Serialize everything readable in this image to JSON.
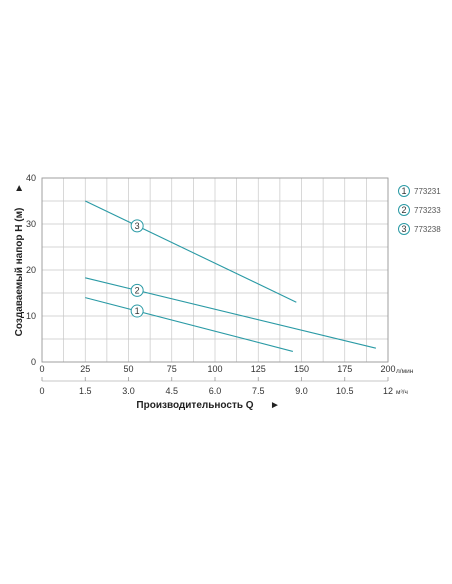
{
  "chart_data": {
    "type": "line",
    "x_primary": {
      "unit": "л/мин",
      "min": 0,
      "max": 200,
      "ticks": [
        0,
        25,
        50,
        75,
        100,
        125,
        150,
        175,
        200
      ]
    },
    "x_secondary": {
      "unit": "м³/ч",
      "ticks": [
        "0",
        "1.5",
        "3.0",
        "4.5",
        "6.0",
        "7.5",
        "9.0",
        "10.5",
        "12"
      ]
    },
    "y": {
      "min": 0,
      "max": 40,
      "ticks": [
        0,
        10,
        20,
        30,
        40
      ]
    },
    "xlabel": "Производительность Q",
    "ylabel": "Создаваемый напор H (м)",
    "grid": true,
    "line_color": "#2a9aa5",
    "legend_placement": "right",
    "series": [
      {
        "marker": "1",
        "name": "773231",
        "x": [
          25,
          145
        ],
        "y": [
          14,
          2.3
        ],
        "marker_x": 55
      },
      {
        "marker": "2",
        "name": "773233",
        "x": [
          25,
          193
        ],
        "y": [
          18.3,
          3
        ],
        "marker_x": 55
      },
      {
        "marker": "3",
        "name": "773238",
        "x": [
          25,
          147
        ],
        "y": [
          35,
          13
        ],
        "marker_x": 55
      }
    ]
  }
}
